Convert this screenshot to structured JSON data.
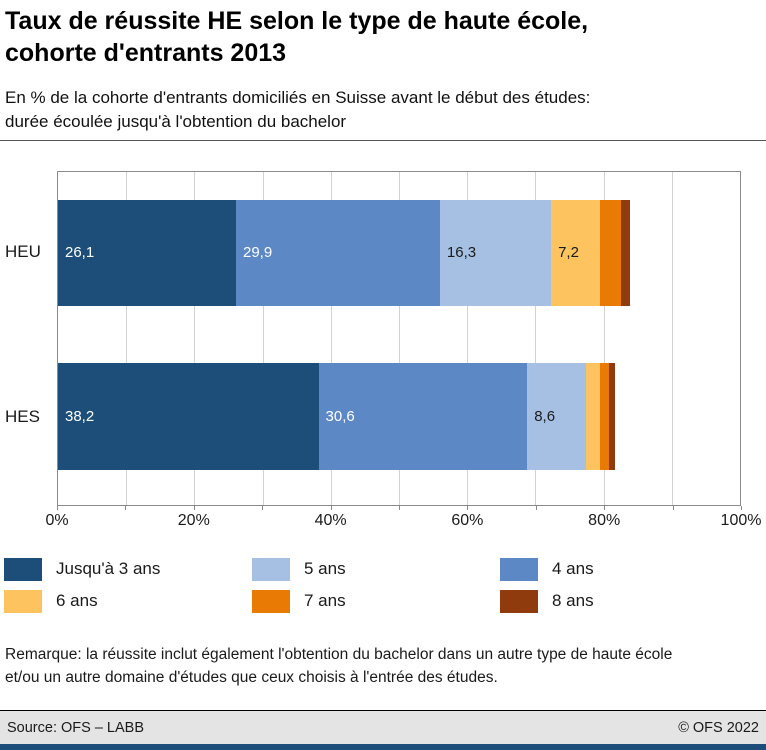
{
  "header": {
    "title_lines": [
      "Taux de réussite HE selon le type de haute école,",
      "cohorte d'entrants 2013"
    ],
    "subtitle_lines": [
      "En % de la cohorte d'entrants domiciliés en Suisse avant le début des études:",
      "durée écoulée jusqu'à l'obtention du bachelor"
    ]
  },
  "chart_data": {
    "type": "bar",
    "orientation": "horizontal",
    "stacked": true,
    "categories": [
      "HEU",
      "HES"
    ],
    "series": [
      {
        "name": "Jusqu'à 3 ans",
        "color": "#1c4e79",
        "values": [
          26.1,
          38.2
        ],
        "value_labels": [
          "26,1",
          "38,2"
        ],
        "label_color": "#ffffff"
      },
      {
        "name": "4 ans",
        "color": "#5c88c5",
        "values": [
          29.9,
          30.6
        ],
        "value_labels": [
          "29,9",
          "30,6"
        ],
        "label_color": "#ffffff"
      },
      {
        "name": "5 ans",
        "color": "#a6c0e4",
        "values": [
          16.3,
          8.6
        ],
        "value_labels": [
          "16,3",
          "8,6"
        ],
        "label_color": "#1a1a1a"
      },
      {
        "name": "6 ans",
        "color": "#fcc35f",
        "values": [
          7.2,
          2.1
        ],
        "value_labels": [
          "7,2",
          ""
        ],
        "label_color": "#1a1a1a"
      },
      {
        "name": "7 ans",
        "color": "#e97b05",
        "values": [
          3.0,
          1.3
        ],
        "value_labels": [
          "",
          ""
        ],
        "label_color": "#ffffff"
      },
      {
        "name": "8 ans",
        "color": "#8f3b0d",
        "values": [
          1.4,
          0.9
        ],
        "value_labels": [
          "",
          ""
        ],
        "label_color": "#ffffff"
      }
    ],
    "xlim": [
      0,
      100
    ],
    "x_tick_labels": [
      "0%",
      "20%",
      "40%",
      "60%",
      "80%",
      "100%"
    ],
    "x_tick_positions": [
      0,
      20,
      40,
      60,
      80,
      100
    ],
    "gridline_step": 10,
    "legend_position": "bottom"
  },
  "legend": {
    "items": [
      {
        "label": "Jusqu'à 3 ans",
        "color": "#1c4e79"
      },
      {
        "label": "5 ans",
        "color": "#a6c0e4"
      },
      {
        "label": "4 ans",
        "color": "#5c88c5"
      },
      {
        "label": "6 ans",
        "color": "#fcc35f"
      },
      {
        "label": "7 ans",
        "color": "#e97b05"
      },
      {
        "label": "8 ans",
        "color": "#8f3b0d"
      }
    ]
  },
  "remark_lines": [
    "Remarque: la réussite inclut également l'obtention du bachelor dans un autre type de haute école",
    "et/ou un autre domaine d'études que ceux choisis à l'entrée des études."
  ],
  "footer": {
    "source": "Source: OFS – LABB",
    "copyright": "© OFS 2022"
  }
}
